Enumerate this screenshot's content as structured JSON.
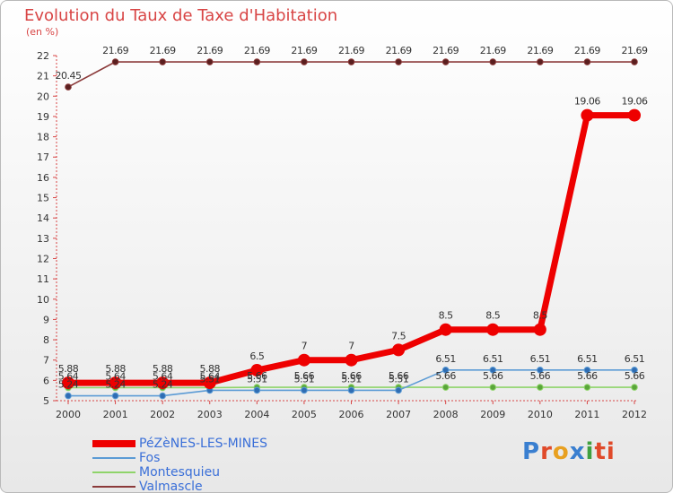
{
  "header": {
    "title": "Evolution du Taux de Taxe d'Habitation",
    "unit": "(en %)"
  },
  "logo": {
    "letters": [
      "P",
      "r",
      "o",
      "x",
      "i",
      "ti"
    ]
  },
  "chart_data": {
    "type": "line",
    "title": "Evolution du Taux de Taxe d'Habitation",
    "ylabel": "(en %)",
    "xlabel": "",
    "ylim": [
      5,
      22
    ],
    "y_ticks": [
      5,
      6,
      7,
      8,
      9,
      10,
      11,
      12,
      13,
      14,
      15,
      16,
      17,
      18,
      19,
      20,
      21,
      22
    ],
    "x": [
      "2000",
      "2001",
      "2002",
      "2003",
      "2004",
      "2005",
      "2006",
      "2007",
      "2008",
      "2009",
      "2010",
      "2011",
      "2012"
    ],
    "grid": false,
    "legend_position": "bottom-left",
    "series": [
      {
        "name": "PéZèNES-LES-MINES",
        "color": "#ee0000",
        "values": [
          5.88,
          5.88,
          5.88,
          5.88,
          6.5,
          7,
          7,
          7.5,
          8.5,
          8.5,
          8.5,
          19.06,
          19.06
        ],
        "labels": [
          "5.88",
          "5.88",
          "5.88",
          "5.88",
          "6.5",
          "7",
          "7",
          "7.5",
          "8.5",
          "8.5",
          "8.5",
          "19.06",
          "19.06"
        ]
      },
      {
        "name": "Fos",
        "color": "#5b9bd5",
        "values": [
          5.24,
          5.24,
          5.24,
          5.51,
          5.51,
          5.51,
          5.51,
          5.51,
          6.51,
          6.51,
          6.51,
          6.51,
          6.51
        ],
        "labels": [
          "5.24",
          "5.24",
          "5.24",
          "5.51",
          "5.51",
          "5.51",
          "5.51",
          "5.51",
          "6.51",
          "6.51",
          "6.51",
          "6.51",
          "6.51"
        ]
      },
      {
        "name": "Montesquieu",
        "color": "#8fd46a",
        "values": [
          5.64,
          5.64,
          5.64,
          5.64,
          5.66,
          5.66,
          5.66,
          5.66,
          5.66,
          5.66,
          5.66,
          5.66,
          5.66
        ],
        "labels": [
          "5.64",
          "5.64",
          "5.64",
          "5.64",
          "5.66",
          "5.66",
          "5.66",
          "5.66",
          "5.66",
          "5.66",
          "5.66",
          "5.66",
          "5.66"
        ]
      },
      {
        "name": "Valmascle",
        "color": "#8b3a3a",
        "values": [
          20.45,
          21.69,
          21.69,
          21.69,
          21.69,
          21.69,
          21.69,
          21.69,
          21.69,
          21.69,
          21.69,
          21.69,
          21.69
        ],
        "labels": [
          "20.45",
          "21.69",
          "21.69",
          "21.69",
          "21.69",
          "21.69",
          "21.69",
          "21.69",
          "21.69",
          "21.69",
          "21.69",
          "21.69",
          "21.69"
        ]
      }
    ]
  }
}
